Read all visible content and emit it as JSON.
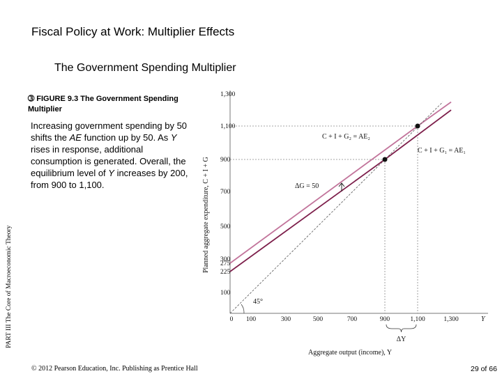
{
  "slide": {
    "title": "Fiscal Policy at Work: Multiplier Effects",
    "subtitle": "The Government Spending Multiplier",
    "figure_icon": "circled-digit-icon",
    "figure_number": "FIGURE 9.3",
    "figure_caption": "The Government Spending Multiplier",
    "description_parts": [
      "Increasing government spending by 50 shifts the ",
      "AE",
      " function up by 50. As ",
      "Y",
      " rises in response, additional consumption is generated. Overall, the equilibrium level of ",
      "Y",
      " increases by 200, from  900 to 1,100."
    ],
    "side_label": "PART III  The Core of Macroeconomic Theory",
    "copyright": "© 2012 Pearson Education, Inc. Publishing as Prentice Hall",
    "page": "29 of 66"
  },
  "chart_data": {
    "type": "line",
    "xlabel": "Aggregate output (income), Y",
    "ylabel": "Planned aggregate expenditure, C + I + G",
    "x_ticks": [
      "0",
      "100",
      "300",
      "500",
      "700",
      "900",
      "1,100",
      "1,300"
    ],
    "x_axis_symbol": "Y",
    "y_ticks": [
      "100",
      "225",
      "275",
      "300",
      "500",
      "700",
      "900",
      "1,100",
      "1,300"
    ],
    "xlim": [
      0,
      1400
    ],
    "ylim": [
      0,
      1300
    ],
    "series": [
      {
        "name": "C + I + G₂ = AE₂",
        "color": "#c2749b",
        "points": [
          [
            0,
            275
          ],
          [
            1100,
            1100
          ],
          [
            1300,
            1250
          ]
        ]
      },
      {
        "name": "C + I + G₁ = AE₁",
        "color": "#7d1f4b",
        "points": [
          [
            0,
            225
          ],
          [
            900,
            900
          ],
          [
            1300,
            1200
          ]
        ]
      },
      {
        "name": "45° line",
        "color": "#555555",
        "dashed": true,
        "points": [
          [
            0,
            0
          ],
          [
            1250,
            1250
          ]
        ]
      }
    ],
    "equilibria": [
      {
        "x": 900,
        "y": 900
      },
      {
        "x": 1100,
        "y": 1100
      }
    ],
    "annotations": {
      "delta_g": "ΔG = 50",
      "delta_y": "ΔY",
      "angle": "45°"
    }
  }
}
